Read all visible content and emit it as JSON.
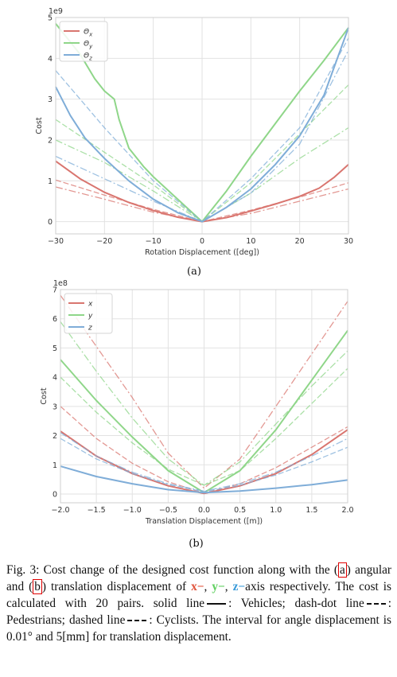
{
  "chart_data": [
    {
      "type": "line",
      "id": "a",
      "sublabel": "(a)",
      "scale_note": "1e9",
      "xlabel": "Rotation Displacement ([deg])",
      "ylabel": "Cost",
      "xlim": [
        -30,
        30
      ],
      "ylim": [
        -0.3,
        5
      ],
      "xticks": [
        -30,
        -20,
        -10,
        0,
        10,
        20,
        30
      ],
      "yticks": [
        0,
        1,
        2,
        3,
        4,
        5
      ],
      "grid": true,
      "legend": "top-left",
      "legend_entries": [
        {
          "label": "Θx",
          "base": "Θ",
          "sub": "x",
          "color": "#d9756f"
        },
        {
          "label": "Θy",
          "base": "Θ",
          "sub": "y",
          "color": "#8fd689"
        },
        {
          "label": "Θz",
          "base": "Θ",
          "sub": "z",
          "color": "#7fadd8"
        }
      ],
      "series": [
        {
          "axis": "x",
          "style": "solid",
          "color": "#d9756f",
          "x": [
            -30,
            -25,
            -20,
            -15,
            -10,
            -5,
            0,
            5,
            10,
            15,
            20,
            24,
            27,
            30
          ],
          "y": [
            1.48,
            1.05,
            0.72,
            0.47,
            0.27,
            0.11,
            0.0,
            0.1,
            0.26,
            0.43,
            0.62,
            0.82,
            1.08,
            1.4
          ]
        },
        {
          "axis": "x",
          "style": "dashdot",
          "color": "#d9756f",
          "x": [
            -30,
            -20,
            -10,
            0,
            10,
            20,
            30
          ],
          "y": [
            0.85,
            0.55,
            0.23,
            0.0,
            0.2,
            0.5,
            0.8
          ]
        },
        {
          "axis": "x",
          "style": "dashed",
          "color": "#d9756f",
          "x": [
            -30,
            -20,
            -10,
            0,
            10,
            20,
            30
          ],
          "y": [
            1.02,
            0.65,
            0.3,
            0.0,
            0.28,
            0.6,
            0.95
          ]
        },
        {
          "axis": "y",
          "style": "solid",
          "color": "#8fd689",
          "x": [
            -30,
            -25,
            -22,
            -20,
            -18,
            -17,
            -15,
            -12,
            -10,
            -5,
            0,
            5,
            10,
            15,
            20,
            25,
            30
          ],
          "y": [
            4.85,
            4.1,
            3.5,
            3.2,
            3.0,
            2.5,
            1.8,
            1.35,
            1.1,
            0.55,
            0.0,
            0.75,
            1.6,
            2.4,
            3.2,
            3.95,
            4.75
          ]
        },
        {
          "axis": "y",
          "style": "dashdot",
          "color": "#8fd689",
          "x": [
            -30,
            -20,
            -10,
            0,
            10,
            20,
            30
          ],
          "y": [
            2.0,
            1.45,
            0.75,
            0.0,
            0.7,
            1.55,
            2.3
          ]
        },
        {
          "axis": "y",
          "style": "dashed",
          "color": "#8fd689",
          "x": [
            -30,
            -20,
            -10,
            0,
            10,
            20,
            30
          ],
          "y": [
            2.5,
            1.7,
            0.9,
            0.0,
            0.95,
            2.15,
            3.35
          ]
        },
        {
          "axis": "z",
          "style": "solid",
          "color": "#7fadd8",
          "x": [
            -30,
            -27,
            -24,
            -20,
            -15,
            -10,
            -5,
            0,
            5,
            10,
            15,
            20,
            25,
            30
          ],
          "y": [
            3.3,
            2.6,
            2.05,
            1.55,
            1.0,
            0.55,
            0.22,
            0.0,
            0.35,
            0.8,
            1.4,
            2.1,
            3.1,
            4.75
          ]
        },
        {
          "axis": "z",
          "style": "dashdot",
          "color": "#7fadd8",
          "x": [
            -30,
            -20,
            -10,
            0,
            10,
            20,
            30
          ],
          "y": [
            1.6,
            1.05,
            0.5,
            0.0,
            0.7,
            1.9,
            4.2
          ]
        },
        {
          "axis": "z",
          "style": "dashed",
          "color": "#7fadd8",
          "x": [
            -30,
            -25,
            -20,
            -10,
            0,
            10,
            20,
            30
          ],
          "y": [
            3.7,
            3.0,
            2.3,
            1.0,
            0.0,
            1.05,
            2.3,
            4.5
          ]
        }
      ]
    },
    {
      "type": "line",
      "id": "b",
      "sublabel": "(b)",
      "scale_note": "1e8",
      "xlabel": "Translation Displacement ([m])",
      "ylabel": "Cost",
      "xlim": [
        -2.0,
        2.0
      ],
      "ylim": [
        -0.3,
        7
      ],
      "xticks": [
        "−2.0",
        "−1.5",
        "−1.0",
        "−0.5",
        "0.0",
        "0.5",
        "1.0",
        "1.5",
        "2.0"
      ],
      "yticks": [
        0,
        1,
        2,
        3,
        4,
        5,
        6,
        7
      ],
      "grid": true,
      "legend": "top-left",
      "legend_entries": [
        {
          "label": "x",
          "base": "x",
          "sub": "",
          "color": "#d9756f"
        },
        {
          "label": "y",
          "base": "y",
          "sub": "",
          "color": "#8fd689"
        },
        {
          "label": "z",
          "base": "z",
          "sub": "",
          "color": "#7fadd8"
        }
      ],
      "series": [
        {
          "axis": "x",
          "style": "solid",
          "color": "#d9756f",
          "x": [
            -2.0,
            -1.5,
            -1.0,
            -0.5,
            0.0,
            0.5,
            1.0,
            1.5,
            2.0
          ],
          "y": [
            2.15,
            1.3,
            0.7,
            0.28,
            0.02,
            0.28,
            0.7,
            1.35,
            2.2
          ]
        },
        {
          "axis": "x",
          "style": "dashdot",
          "color": "#d9756f",
          "x": [
            -2.0,
            -1.0,
            -0.5,
            0.0,
            0.5,
            1.0,
            1.5,
            2.0
          ],
          "y": [
            6.8,
            3.3,
            1.4,
            0.2,
            1.2,
            3.0,
            4.8,
            6.6
          ]
        },
        {
          "axis": "x",
          "style": "dashed",
          "color": "#d9756f",
          "x": [
            -2.0,
            -1.5,
            -1.0,
            -0.5,
            0.0,
            0.5,
            1.0,
            1.5,
            2.0
          ],
          "y": [
            3.0,
            1.9,
            1.05,
            0.42,
            0.03,
            0.35,
            0.9,
            1.6,
            2.3
          ]
        },
        {
          "axis": "y",
          "style": "solid",
          "color": "#8fd689",
          "x": [
            -2.0,
            -1.5,
            -1.0,
            -0.5,
            0.0,
            0.5,
            1.0,
            1.5,
            2.0
          ],
          "y": [
            4.6,
            3.2,
            1.95,
            0.8,
            0.05,
            0.8,
            2.2,
            3.9,
            5.6
          ]
        },
        {
          "axis": "y",
          "style": "dashdot",
          "color": "#8fd689",
          "x": [
            -2.0,
            -1.5,
            -1.0,
            -0.5,
            0.0,
            0.5,
            1.0,
            1.5,
            2.0
          ],
          "y": [
            5.9,
            4.2,
            2.6,
            1.2,
            0.3,
            1.1,
            2.4,
            3.7,
            4.9
          ]
        },
        {
          "axis": "y",
          "style": "dashed",
          "color": "#8fd689",
          "x": [
            -2.0,
            -1.5,
            -1.0,
            -0.5,
            0.0,
            0.5,
            1.0,
            1.5,
            2.0
          ],
          "y": [
            4.0,
            2.8,
            1.75,
            0.85,
            0.3,
            0.8,
            1.9,
            3.1,
            4.3
          ]
        },
        {
          "axis": "z",
          "style": "solid",
          "color": "#7fadd8",
          "x": [
            -2.0,
            -1.5,
            -1.0,
            -0.5,
            0.0,
            0.5,
            1.0,
            1.5,
            2.0
          ],
          "y": [
            0.95,
            0.6,
            0.35,
            0.15,
            0.05,
            0.1,
            0.2,
            0.32,
            0.48
          ]
        },
        {
          "axis": "z",
          "style": "dashdot",
          "color": "#7fadd8",
          "x": [
            -2.0,
            -1.5,
            -1.0,
            -0.5,
            0.0,
            0.5,
            1.0,
            1.5,
            2.0
          ],
          "y": [
            2.1,
            1.3,
            0.75,
            0.35,
            0.1,
            0.35,
            0.75,
            1.3,
            1.9
          ]
        },
        {
          "axis": "z",
          "style": "dashed",
          "color": "#7fadd8",
          "x": [
            -2.0,
            -1.5,
            -1.0,
            -0.5,
            0.0,
            0.5,
            1.0,
            1.5,
            2.0
          ],
          "y": [
            1.9,
            1.2,
            0.7,
            0.32,
            0.08,
            0.3,
            0.65,
            1.1,
            1.6
          ]
        }
      ]
    }
  ],
  "caption": {
    "fig_label": "Fig. 3:",
    "text_1": "Cost change of the designed cost function along with the (",
    "ref_a": "a",
    "text_2": ") angular and (",
    "ref_b": "b",
    "text_3": ") translation displacement of",
    "x_axis": "x−",
    "sep_1": ",",
    "y_axis": "y−",
    "sep_2": ",",
    "z_axis": "z−",
    "text_4": "axis respectively. The cost is calculated with 20 pairs. solid line",
    "text_5": ": Vehicles; dash-dot line",
    "text_6": ": Pedestrians; dashed line",
    "text_7": ": Cyclists. The interval for angle displacement is 0.01° and 5[mm] for translation displacement."
  }
}
